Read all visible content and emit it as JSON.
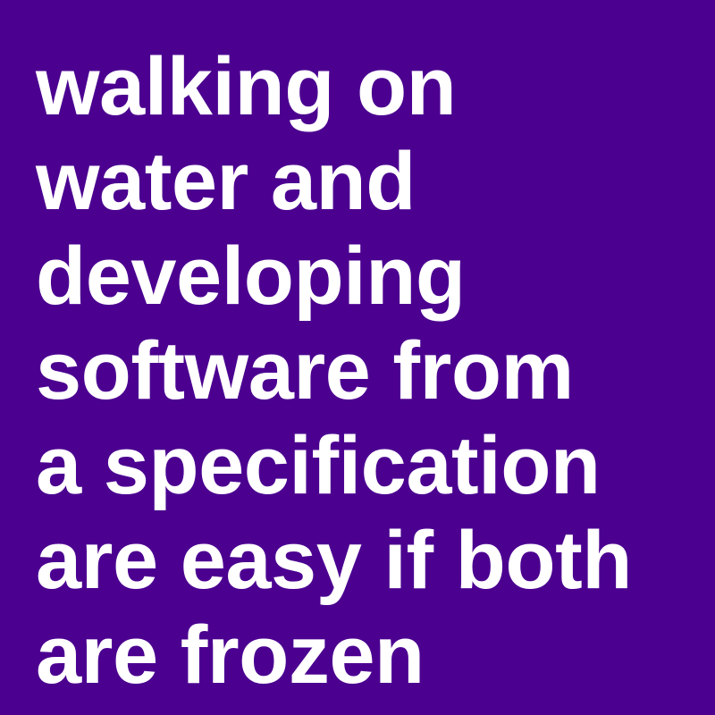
{
  "colors": {
    "background": "#4b0090",
    "text": "#ffffff"
  },
  "quote": {
    "lines": [
      "walking on",
      "water and",
      "developing",
      "software from",
      "a specification",
      "are easy if both",
      "are frozen"
    ]
  }
}
